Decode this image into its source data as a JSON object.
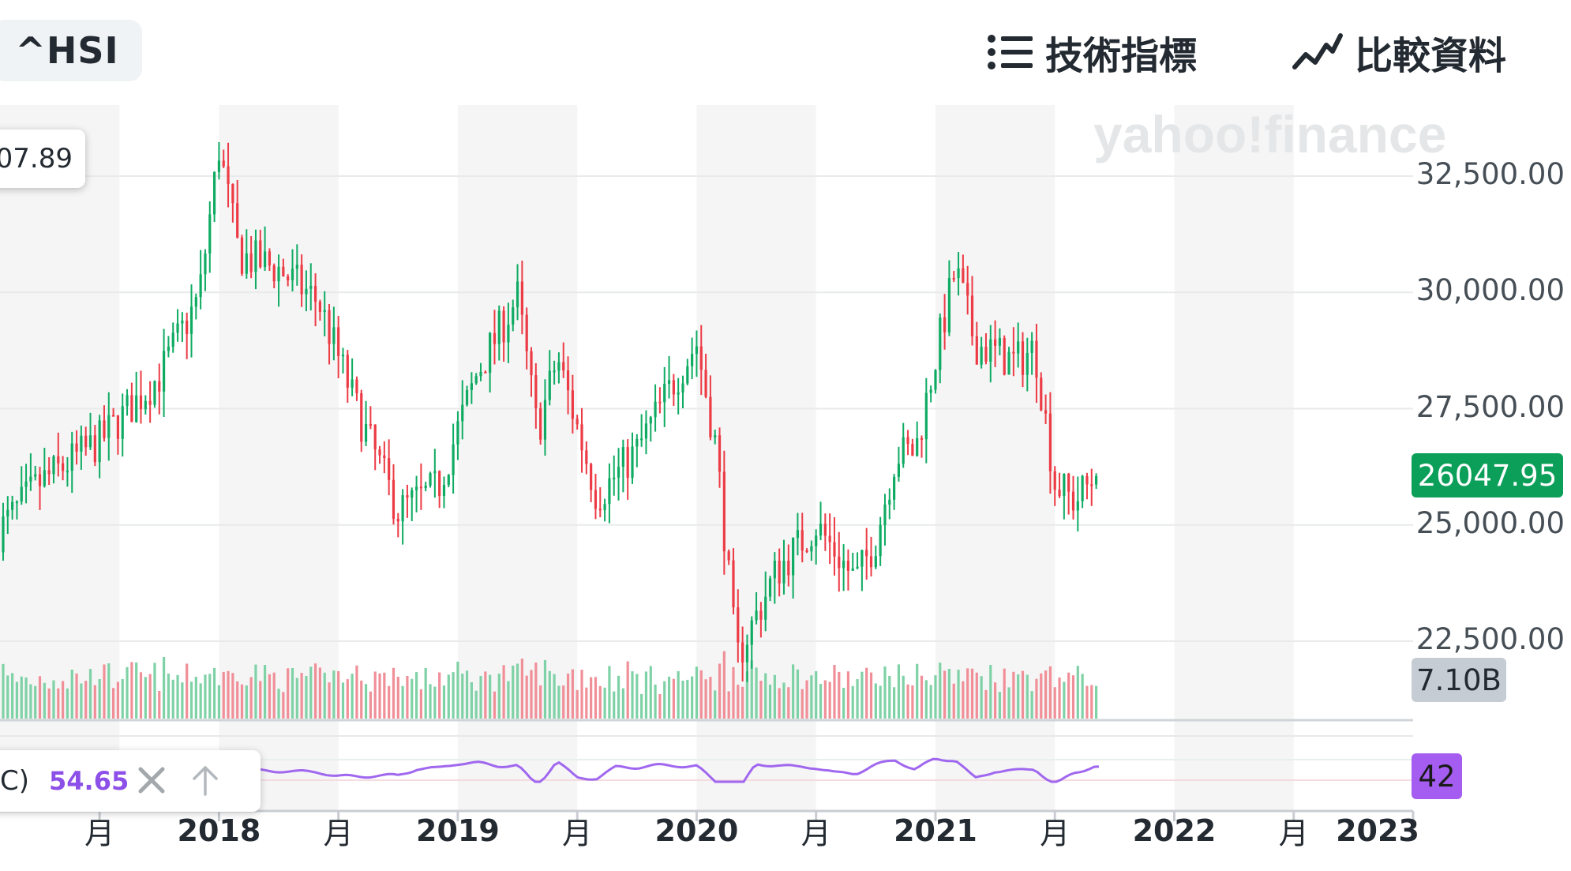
{
  "header": {
    "ticker": "^HSI",
    "indicators_label": "技術指標",
    "compare_label": "比較資料"
  },
  "icons": {
    "indicators": "list-icon",
    "compare": "trend-line-icon",
    "remove_indicator": "close-icon",
    "move_indicator": "arrow-up-icon"
  },
  "watermark": "yahoo!finance",
  "crosshair_price_label": "07.89",
  "indicator": {
    "paren": "C)",
    "value": "54.65",
    "current_tag": "42"
  },
  "last_price_tag": "26047.95",
  "volume_tag": "7.10B",
  "colors": {
    "up": "#0fab63",
    "down": "#ec3b45",
    "volume_up": "#7fd1a6",
    "volume_down": "#f08f98",
    "indicator_line": "#a067ef",
    "price_tag_bg": "#0b9f59",
    "volume_tag_bg": "#c6ccd3",
    "indicator_tag_bg": "#a45df0",
    "band_shade": "#f5f5f5"
  },
  "x_axis": {
    "labels": [
      {
        "text": "月",
        "year": false
      },
      {
        "text": "2018",
        "year": true
      },
      {
        "text": "月",
        "year": false
      },
      {
        "text": "2019",
        "year": true
      },
      {
        "text": "月",
        "year": false
      },
      {
        "text": "2020",
        "year": true
      },
      {
        "text": "月",
        "year": false
      },
      {
        "text": "2021",
        "year": true
      },
      {
        "text": "月",
        "year": false
      },
      {
        "text": "2022",
        "year": true
      },
      {
        "text": "月",
        "year": false
      },
      {
        "text": "2023",
        "year": true
      }
    ]
  },
  "chart_data": {
    "type": "candlestick",
    "interval": "weekly",
    "y_axis": {
      "ticks": [
        "22,500.00",
        "25,000.00",
        "27,500.00",
        "30,000.00",
        "32,500.00"
      ],
      "tick_values": [
        22500,
        25000,
        27500,
        30000,
        32500
      ],
      "range": [
        20800,
        33900
      ]
    },
    "x_axis_range": [
      "2017-02",
      "2023-01"
    ],
    "last_close": 26047.95,
    "last_volume": "7.10B",
    "indicator_last": 54.65,
    "grid": "horizontal",
    "legend": "none",
    "anchors": [
      {
        "date": "2017-01",
        "close": 24400
      },
      {
        "date": "2017-04",
        "close": 25900
      },
      {
        "date": "2017-07",
        "close": 26800
      },
      {
        "date": "2017-10",
        "close": 28200
      },
      {
        "date": "2017-12",
        "close": 29900
      },
      {
        "date": "2018-01",
        "close": 33100
      },
      {
        "date": "2018-02",
        "close": 30800
      },
      {
        "date": "2018-04",
        "close": 30500
      },
      {
        "date": "2018-06",
        "close": 29800
      },
      {
        "date": "2018-08",
        "close": 27400
      },
      {
        "date": "2018-10",
        "close": 25300
      },
      {
        "date": "2018-12",
        "close": 25800
      },
      {
        "date": "2019-02",
        "close": 28300
      },
      {
        "date": "2019-04",
        "close": 29900
      },
      {
        "date": "2019-05",
        "close": 27000
      },
      {
        "date": "2019-06",
        "close": 28600
      },
      {
        "date": "2019-08",
        "close": 25600
      },
      {
        "date": "2019-10",
        "close": 26600
      },
      {
        "date": "2019-12",
        "close": 28200
      },
      {
        "date": "2020-01",
        "close": 28900
      },
      {
        "date": "2020-02",
        "close": 26600
      },
      {
        "date": "2020-03",
        "close": 22100
      },
      {
        "date": "2020-05",
        "close": 24000
      },
      {
        "date": "2020-07",
        "close": 25000
      },
      {
        "date": "2020-09",
        "close": 23800
      },
      {
        "date": "2020-10",
        "close": 24700
      },
      {
        "date": "2020-11",
        "close": 26500
      },
      {
        "date": "2020-12",
        "close": 26600
      },
      {
        "date": "2021-01",
        "close": 28600
      },
      {
        "date": "2021-02",
        "close": 30500
      },
      {
        "date": "2021-03",
        "close": 28900
      },
      {
        "date": "2021-05",
        "close": 28500
      },
      {
        "date": "2021-06",
        "close": 28800
      },
      {
        "date": "2021-07",
        "close": 25900
      },
      {
        "date": "2021-08",
        "close": 25500
      },
      {
        "date": "2021-09",
        "close": 26048
      }
    ]
  }
}
